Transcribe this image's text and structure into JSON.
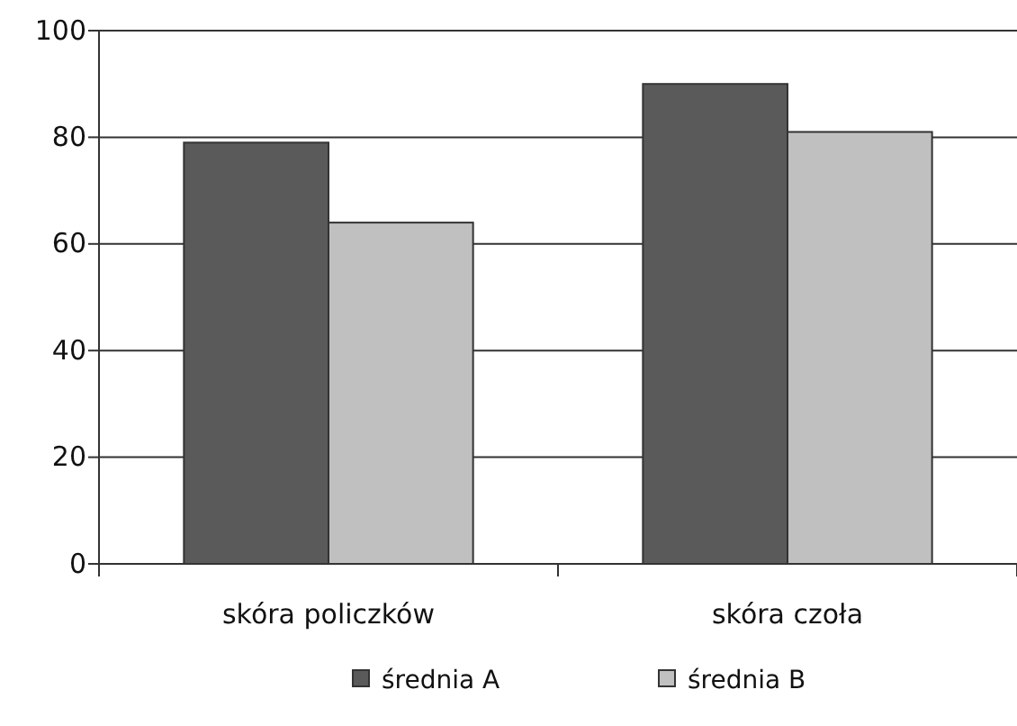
{
  "chart_data": {
    "type": "bar",
    "categories": [
      "skóra policzków",
      "skóra czoła"
    ],
    "series": [
      {
        "name": "średnia A",
        "color": "#5a5a5a",
        "values": [
          79,
          90
        ]
      },
      {
        "name": "średnia B",
        "color": "#c0c0c0",
        "values": [
          64,
          81
        ]
      }
    ],
    "ylim": [
      0,
      100
    ],
    "yticks": [
      0,
      20,
      40,
      60,
      80,
      100
    ],
    "grid": "y",
    "legend": "bottom"
  }
}
